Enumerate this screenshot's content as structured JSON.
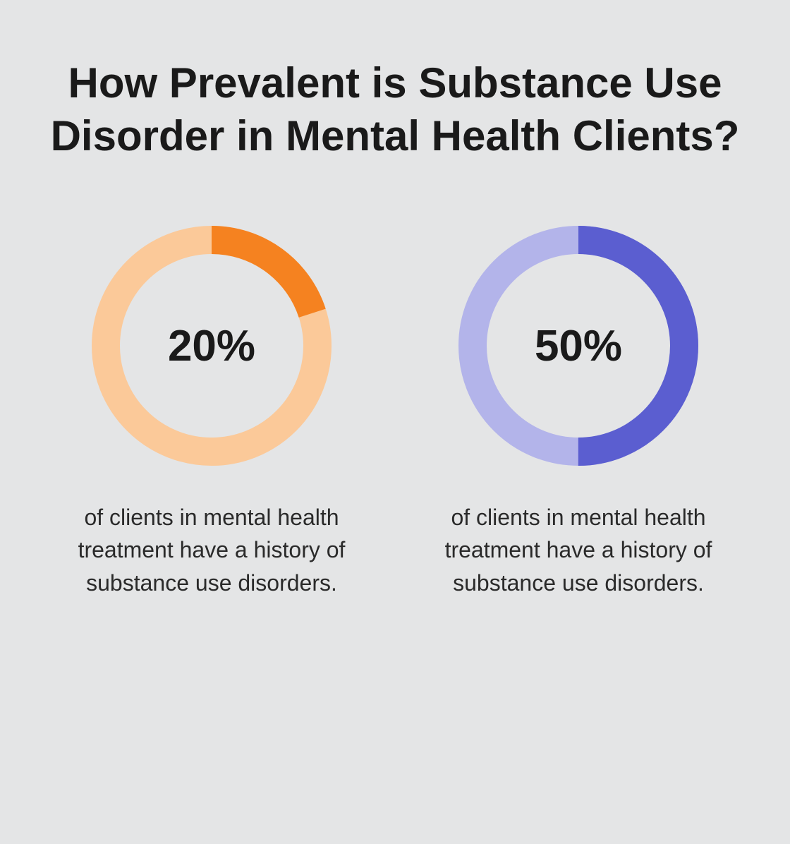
{
  "title": "How Prevalent is Substance Use Disorder in Mental Health Clients?",
  "background_color": "#e4e5e6",
  "title_color": "#1a1a1a",
  "title_fontsize": 60,
  "title_fontweight": 700,
  "charts": [
    {
      "type": "donut",
      "percent": 20,
      "center_label": "20%",
      "caption": "of clients in mental health treatment have a history of substance use disorders.",
      "ring_fg_color": "#f58220",
      "ring_bg_color": "#fbc999",
      "ring_thickness": 40,
      "ring_radius": 150,
      "center_fontsize": 62,
      "center_fontweight": 600,
      "center_color": "#1a1a1a",
      "caption_fontsize": 32,
      "caption_color": "#2a2a2a"
    },
    {
      "type": "donut",
      "percent": 50,
      "center_label": "50%",
      "caption": "of clients in mental health treatment have a history of substance use disorders.",
      "ring_fg_color": "#5b5ed0",
      "ring_bg_color": "#b3b4ea",
      "ring_thickness": 40,
      "ring_radius": 150,
      "center_fontsize": 62,
      "center_fontweight": 600,
      "center_color": "#1a1a1a",
      "caption_fontsize": 32,
      "caption_color": "#2a2a2a"
    }
  ]
}
